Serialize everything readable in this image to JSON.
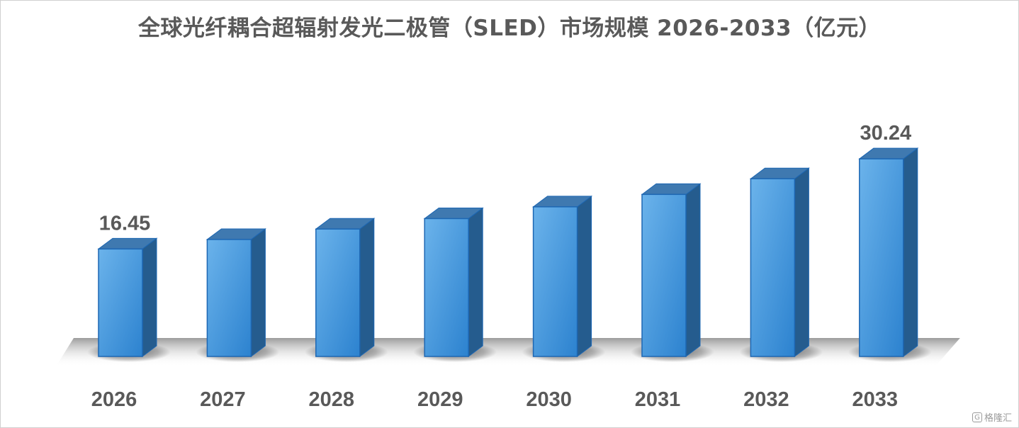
{
  "chart_data": {
    "type": "bar",
    "title": "全球光纤耦合超辐射发光二极管（SLED）市场规模 2026-2033（亿元）",
    "categories": [
      "2026",
      "2027",
      "2028",
      "2029",
      "2030",
      "2031",
      "2032",
      "2033"
    ],
    "values": [
      16.45,
      17.9,
      19.5,
      21.1,
      22.9,
      24.8,
      27.2,
      30.24
    ],
    "data_labels": [
      "16.45",
      "",
      "",
      "",
      "",
      "",
      "",
      "30.24"
    ],
    "ylim": [
      0,
      32
    ],
    "grid": false,
    "legend": "none",
    "style": "3d-column"
  },
  "colors": {
    "bar_front_light": "#6bb3eb",
    "bar_front_dark": "#2c82cf",
    "bar_top": "#3f79b0",
    "bar_side": "#255c8e",
    "bar_edge": "#1d67b3",
    "label_text": "#595959"
  },
  "watermark": {
    "logo_glyph": "G",
    "text": "格隆汇"
  }
}
